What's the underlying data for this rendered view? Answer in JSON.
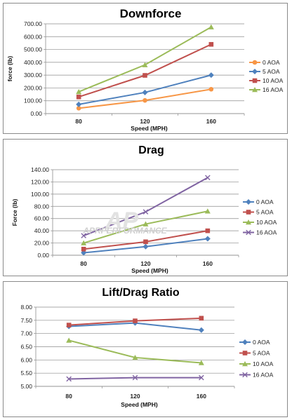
{
  "chart_data": [
    {
      "type": "line",
      "title": "Downforce",
      "xlabel": "Speed (MPH)",
      "ylabel": "force (lb)",
      "categories": [
        "80",
        "120",
        "160"
      ],
      "ylim": [
        0,
        700
      ],
      "yticks": [
        "0.00",
        "100.00",
        "200.00",
        "300.00",
        "400.00",
        "500.00",
        "600.00",
        "700.00"
      ],
      "grid": true,
      "legend_position": "right",
      "series": [
        {
          "name": "0 AOA",
          "values": [
            42,
            103,
            190
          ],
          "color": "#F79646",
          "marker": "circle"
        },
        {
          "name": "5 AOA",
          "values": [
            72,
            165,
            300
          ],
          "color": "#4F81BD",
          "marker": "diamond"
        },
        {
          "name": "10 AOA",
          "values": [
            130,
            298,
            540
          ],
          "color": "#C0504D",
          "marker": "square"
        },
        {
          "name": "16 AOA",
          "values": [
            170,
            380,
            675
          ],
          "color": "#9BBB59",
          "marker": "triangle"
        }
      ]
    },
    {
      "type": "line",
      "title": "Drag",
      "xlabel": "Speed (MPH)",
      "ylabel": "Force (lb)",
      "categories": [
        "80",
        "120",
        "160"
      ],
      "ylim": [
        0,
        140
      ],
      "yticks": [
        "0.00",
        "20.00",
        "40.00",
        "60.00",
        "80.00",
        "100.00",
        "120.00",
        "140.00"
      ],
      "grid": true,
      "legend_position": "right",
      "series": [
        {
          "name": "0 AOA",
          "values": [
            4,
            14,
            27
          ],
          "color": "#4F81BD",
          "marker": "diamond"
        },
        {
          "name": "5 AOA",
          "values": [
            10,
            22,
            40
          ],
          "color": "#C0504D",
          "marker": "square"
        },
        {
          "name": "10 AOA",
          "values": [
            20,
            51,
            72
          ],
          "color": "#9BBB59",
          "marker": "triangle"
        },
        {
          "name": "16 AOA",
          "values": [
            32,
            71,
            127
          ],
          "color": "#8064A2",
          "marker": "x"
        }
      ]
    },
    {
      "type": "line",
      "title": "Lift/Drag Ratio",
      "xlabel": "Speed (MPH)",
      "ylabel": "",
      "categories": [
        "80",
        "120",
        "160"
      ],
      "ylim": [
        5,
        8
      ],
      "yticks": [
        "5.00",
        "5.50",
        "6.00",
        "6.50",
        "7.00",
        "7.50",
        "8.00"
      ],
      "grid": true,
      "legend_position": "right",
      "series": [
        {
          "name": "0 AOA",
          "values": [
            7.27,
            7.4,
            7.13
          ],
          "color": "#4F81BD",
          "marker": "diamond"
        },
        {
          "name": "5 AOA",
          "values": [
            7.32,
            7.48,
            7.58
          ],
          "color": "#C0504D",
          "marker": "square"
        },
        {
          "name": "10 AOA",
          "values": [
            6.74,
            6.09,
            5.89
          ],
          "color": "#9BBB59",
          "marker": "triangle"
        },
        {
          "name": "16 AOA",
          "values": [
            5.28,
            5.33,
            5.33
          ],
          "color": "#8064A2",
          "marker": "x"
        }
      ]
    }
  ],
  "watermark": {
    "mark": "AP",
    "text": "APRPERFORMANCE"
  }
}
